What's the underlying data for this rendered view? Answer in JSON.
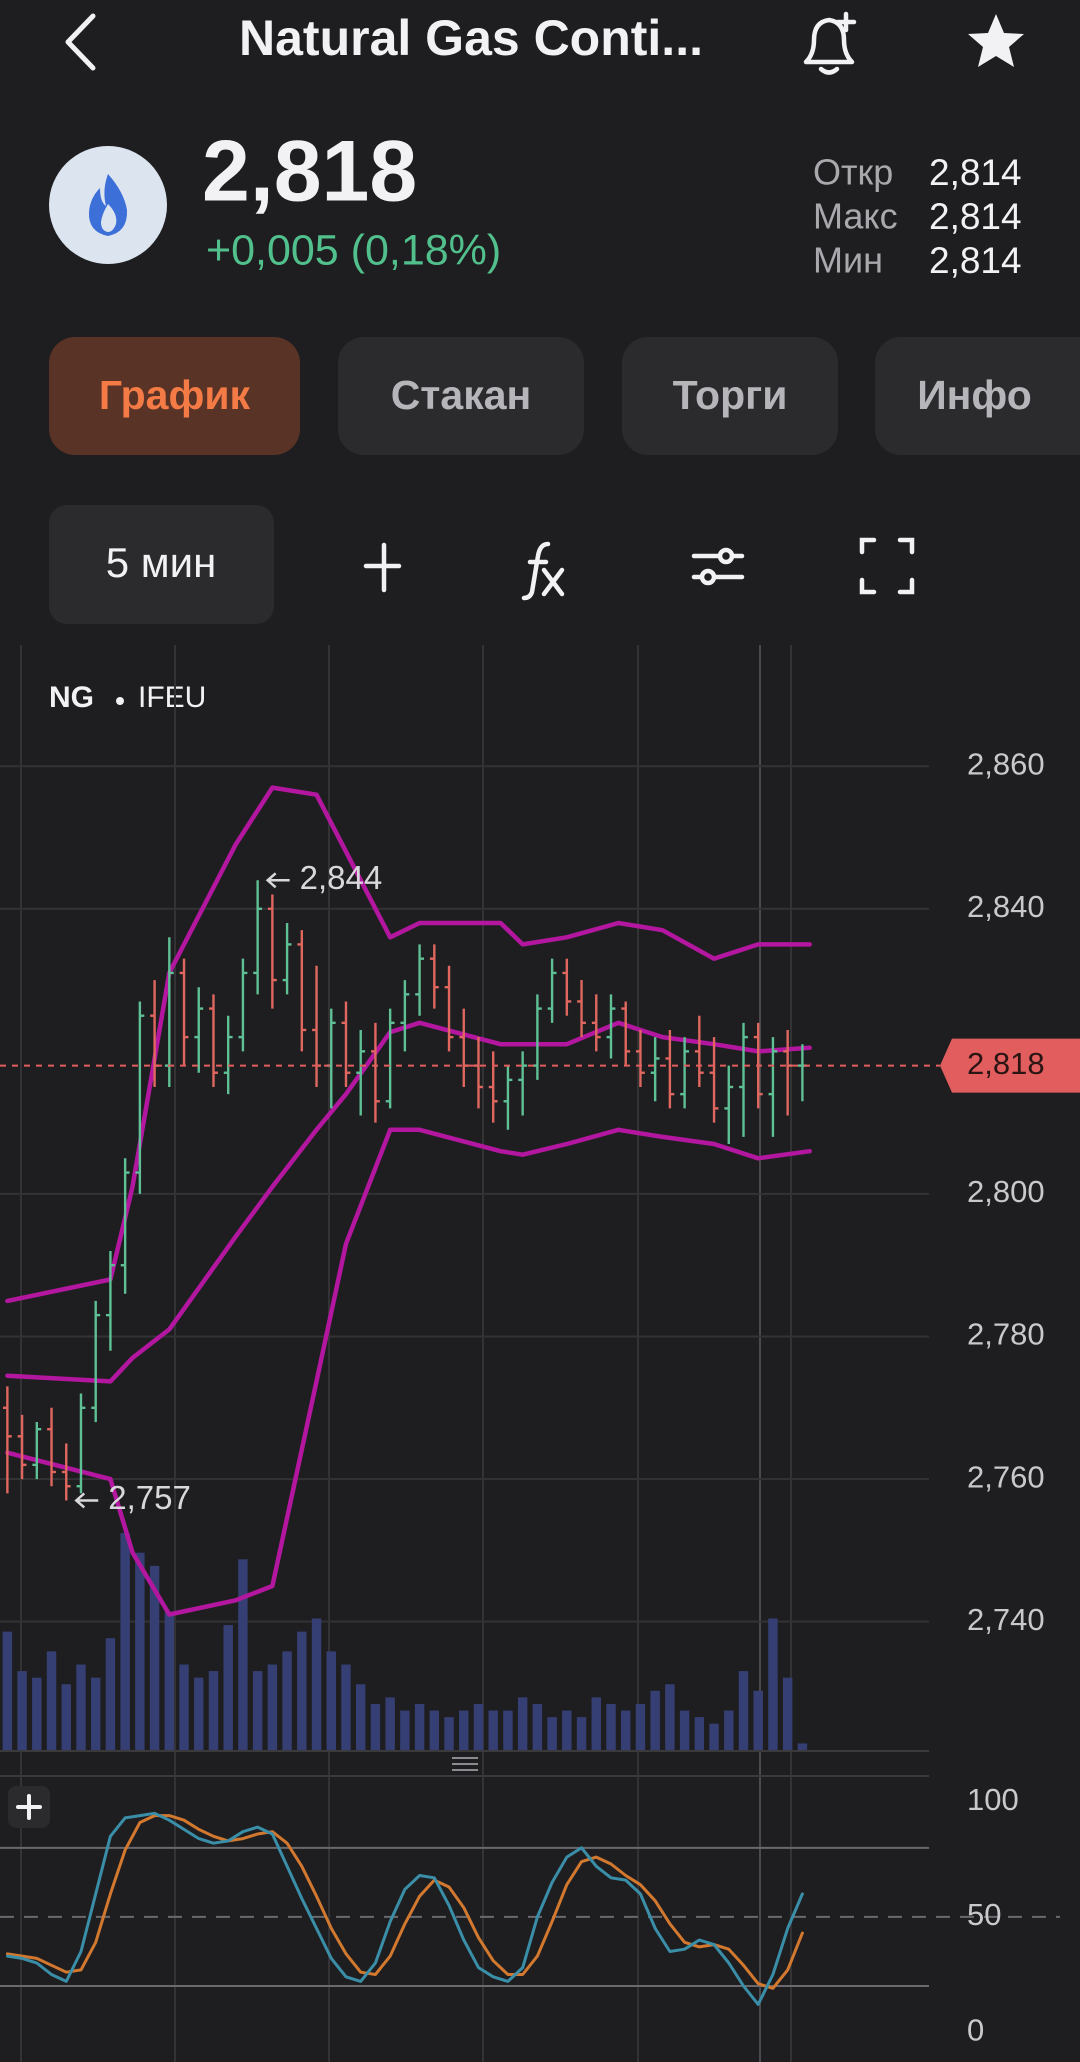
{
  "header": {
    "title": "Natural Gas Conti..."
  },
  "quote": {
    "price": "2,818",
    "change": "+0,005 (0,18%)",
    "stats": [
      {
        "label": "Откр",
        "value": "2,814"
      },
      {
        "label": "Макс",
        "value": "2,814"
      },
      {
        "label": "Мин",
        "value": "2,814"
      }
    ]
  },
  "tabs": {
    "items": [
      "График",
      "Стакан",
      "Торги",
      "Инфо"
    ],
    "active": 0
  },
  "toolbar": {
    "interval": "5 мин"
  },
  "chart": {
    "symbol": "NG",
    "exchange": "IFEU",
    "xlim": [
      -0.5,
      62.6
    ],
    "ylim": [
      2.722,
      2.877
    ],
    "yticks": [
      {
        "value": 2.86,
        "label": "2,860"
      },
      {
        "value": 2.84,
        "label": "2,840"
      },
      {
        "value": 2.8,
        "label": "2,800"
      },
      {
        "value": 2.78,
        "label": "2,780"
      },
      {
        "value": 2.76,
        "label": "2,760"
      },
      {
        "value": 2.74,
        "label": "2,740"
      }
    ],
    "up_color": "#5fbf95",
    "down_color": "#e0675f",
    "ohlc": [
      [
        2.77,
        2.773,
        2.758,
        2.766
      ],
      [
        2.766,
        2.769,
        2.76,
        2.762
      ],
      [
        2.762,
        2.768,
        2.76,
        2.767
      ],
      [
        2.767,
        2.77,
        2.759,
        2.761
      ],
      [
        2.761,
        2.765,
        2.757,
        2.759
      ],
      [
        2.759,
        2.772,
        2.758,
        2.77
      ],
      [
        2.77,
        2.785,
        2.768,
        2.783
      ],
      [
        2.783,
        2.792,
        2.778,
        2.79
      ],
      [
        2.79,
        2.805,
        2.786,
        2.803
      ],
      [
        2.803,
        2.827,
        2.8,
        2.825
      ],
      [
        2.825,
        2.83,
        2.815,
        2.818
      ],
      [
        2.818,
        2.836,
        2.815,
        2.831
      ],
      [
        2.831,
        2.833,
        2.818,
        2.822
      ],
      [
        2.822,
        2.829,
        2.817,
        2.826
      ],
      [
        2.826,
        2.828,
        2.815,
        2.817
      ],
      [
        2.817,
        2.825,
        2.814,
        2.822
      ],
      [
        2.822,
        2.833,
        2.82,
        2.831
      ],
      [
        2.831,
        2.844,
        2.828,
        2.84
      ],
      [
        2.84,
        2.842,
        2.826,
        2.83
      ],
      [
        2.83,
        2.838,
        2.828,
        2.835
      ],
      [
        2.835,
        2.837,
        2.82,
        2.823
      ],
      [
        2.823,
        2.832,
        2.815,
        2.818
      ],
      [
        2.818,
        2.826,
        2.812,
        2.824
      ],
      [
        2.824,
        2.827,
        2.815,
        2.817
      ],
      [
        2.817,
        2.823,
        2.811,
        2.82
      ],
      [
        2.82,
        2.824,
        2.81,
        2.813
      ],
      [
        2.813,
        2.826,
        2.812,
        2.824
      ],
      [
        2.824,
        2.83,
        2.82,
        2.828
      ],
      [
        2.828,
        2.835,
        2.825,
        2.833
      ],
      [
        2.833,
        2.835,
        2.826,
        2.829
      ],
      [
        2.829,
        2.832,
        2.82,
        2.822
      ],
      [
        2.822,
        2.826,
        2.815,
        2.818
      ],
      [
        2.818,
        2.822,
        2.812,
        2.815
      ],
      [
        2.815,
        2.82,
        2.81,
        2.813
      ],
      [
        2.813,
        2.818,
        2.809,
        2.816
      ],
      [
        2.816,
        2.82,
        2.811,
        2.818
      ],
      [
        2.818,
        2.828,
        2.816,
        2.826
      ],
      [
        2.826,
        2.833,
        2.824,
        2.831
      ],
      [
        2.831,
        2.833,
        2.825,
        2.827
      ],
      [
        2.827,
        2.83,
        2.822,
        2.824
      ],
      [
        2.824,
        2.828,
        2.82,
        2.822
      ],
      [
        2.822,
        2.828,
        2.819,
        2.826
      ],
      [
        2.826,
        2.827,
        2.818,
        2.82
      ],
      [
        2.82,
        2.823,
        2.815,
        2.817
      ],
      [
        2.817,
        2.822,
        2.813,
        2.819
      ],
      [
        2.819,
        2.823,
        2.812,
        2.814
      ],
      [
        2.814,
        2.822,
        2.812,
        2.82
      ],
      [
        2.82,
        2.825,
        2.815,
        2.817
      ],
      [
        2.817,
        2.822,
        2.81,
        2.812
      ],
      [
        2.812,
        2.818,
        2.807,
        2.815
      ],
      [
        2.815,
        2.824,
        2.808,
        2.822
      ],
      [
        2.822,
        2.824,
        2.812,
        2.814
      ],
      [
        2.814,
        2.822,
        2.808,
        2.82
      ],
      [
        2.82,
        2.823,
        2.811,
        2.818
      ],
      [
        2.818,
        2.821,
        2.813,
        2.818
      ]
    ],
    "volume": [
      90,
      60,
      55,
      75,
      50,
      65,
      55,
      85,
      165,
      150,
      140,
      105,
      65,
      55,
      60,
      95,
      145,
      60,
      65,
      75,
      90,
      100,
      75,
      65,
      50,
      35,
      40,
      30,
      35,
      30,
      25,
      30,
      35,
      30,
      30,
      40,
      35,
      25,
      30,
      25,
      40,
      35,
      30,
      35,
      45,
      50,
      30,
      25,
      20,
      30,
      60,
      45,
      100,
      55,
      5
    ],
    "volume_color": "#363f73",
    "bands": {
      "color": "#b3179f",
      "x": [
        0,
        7,
        8.5,
        11,
        15.5,
        18,
        21,
        23,
        26,
        28,
        33.5,
        35,
        38,
        41.5,
        44.5,
        48,
        51,
        54.5
      ],
      "upper": [
        2.785,
        2.788,
        2.801,
        2.831,
        2.849,
        2.857,
        2.856,
        2.848,
        2.836,
        2.838,
        2.838,
        2.835,
        2.836,
        2.838,
        2.837,
        2.833,
        2.835,
        2.835
      ],
      "middle": [
        2.7745,
        2.7737,
        2.777,
        2.781,
        2.794,
        2.801,
        2.809,
        2.814,
        2.8227,
        2.824,
        2.821,
        2.821,
        2.821,
        2.824,
        2.822,
        2.821,
        2.82,
        2.8205
      ],
      "lower": [
        2.7637,
        2.76,
        2.7497,
        2.741,
        2.743,
        2.745,
        2.7737,
        2.793,
        2.809,
        2.809,
        2.806,
        2.8055,
        2.807,
        2.809,
        2.808,
        2.807,
        2.805,
        2.806
      ]
    },
    "last": {
      "value": 2.818,
      "label": "2,818",
      "color": "#e25d5d"
    },
    "high_marker": {
      "value": 2.844,
      "label": "2,844"
    },
    "low_marker": {
      "value": 2.757,
      "label": "2,757"
    },
    "stochastic": {
      "ylim": [
        -13,
        111.2
      ],
      "yticks": [
        0,
        50,
        100
      ],
      "levels": [
        20,
        80
      ],
      "midline": 50,
      "k": {
        "color": "#3a8ea8",
        "values": [
          33,
          32,
          30,
          25,
          22,
          35,
          60,
          85,
          93,
          94,
          95,
          92,
          88,
          84,
          82,
          83,
          87,
          89,
          86,
          72,
          58,
          45,
          32,
          24,
          22,
          30,
          48,
          62,
          68,
          67,
          55,
          40,
          28,
          24,
          22,
          28,
          50,
          65,
          76,
          80,
          72,
          67,
          66,
          60,
          45,
          35,
          36,
          40,
          38,
          30,
          20,
          12,
          25,
          45,
          60
        ]
      },
      "d": {
        "color": "#d2782f",
        "values": [
          34,
          33,
          32,
          29,
          26,
          27,
          39,
          60,
          79,
          91,
          94,
          94,
          92,
          88,
          85,
          83,
          84,
          86,
          87,
          82,
          72,
          59,
          45,
          34,
          26,
          25,
          33,
          47,
          59,
          66,
          63,
          54,
          41,
          31,
          25,
          25,
          33,
          48,
          64,
          74,
          76,
          73,
          68,
          64,
          57,
          47,
          39,
          37,
          38,
          36,
          29,
          21,
          19,
          27,
          43
        ]
      }
    }
  }
}
